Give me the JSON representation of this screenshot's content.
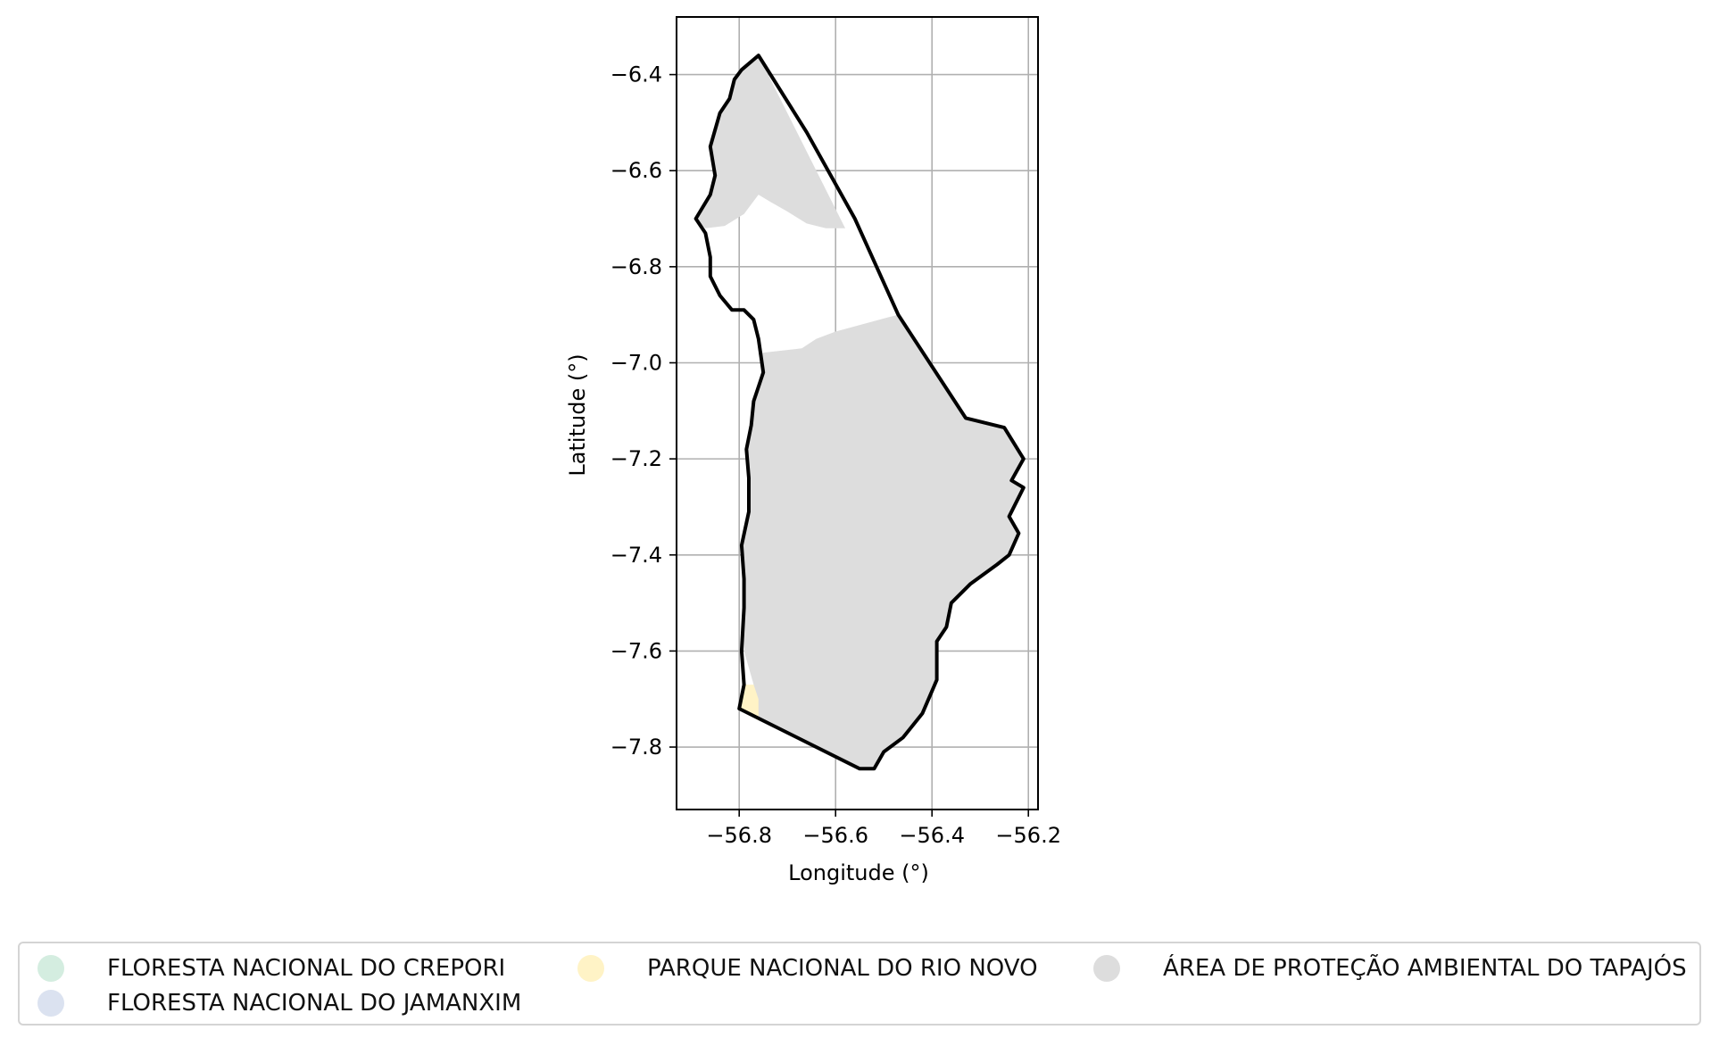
{
  "map": {
    "xlabel": "Longitude (°)",
    "ylabel": "Latitude (°)",
    "xlim": [
      -56.93,
      -56.18
    ],
    "ylim": [
      -7.93,
      -6.28
    ],
    "x_ticks": [
      {
        "value": -56.8,
        "label": "−56.8"
      },
      {
        "value": -56.6,
        "label": "−56.6"
      },
      {
        "value": -56.4,
        "label": "−56.4"
      },
      {
        "value": -56.2,
        "label": "−56.2"
      }
    ],
    "y_ticks": [
      {
        "value": -6.4,
        "label": "−6.4"
      },
      {
        "value": -6.6,
        "label": "−6.6"
      },
      {
        "value": -6.8,
        "label": "−6.8"
      },
      {
        "value": -7.0,
        "label": "−7.0"
      },
      {
        "value": -7.2,
        "label": "−7.2"
      },
      {
        "value": -7.4,
        "label": "−7.4"
      },
      {
        "value": -7.6,
        "label": "−7.6"
      },
      {
        "value": -7.8,
        "label": "−7.8"
      }
    ],
    "grid": true,
    "boundary_color": "#000000",
    "boundary": [
      [
        -56.76,
        -6.36
      ],
      [
        -56.66,
        -6.52
      ],
      [
        -56.56,
        -6.7
      ],
      [
        -56.47,
        -6.9
      ],
      [
        -56.33,
        -7.115
      ],
      [
        -56.25,
        -7.135
      ],
      [
        -56.21,
        -7.2
      ],
      [
        -56.235,
        -7.245
      ],
      [
        -56.21,
        -7.26
      ],
      [
        -56.24,
        -7.32
      ],
      [
        -56.22,
        -7.355
      ],
      [
        -56.24,
        -7.4
      ],
      [
        -56.265,
        -7.42
      ],
      [
        -56.32,
        -7.46
      ],
      [
        -56.36,
        -7.5
      ],
      [
        -56.37,
        -7.55
      ],
      [
        -56.39,
        -7.58
      ],
      [
        -56.39,
        -7.66
      ],
      [
        -56.42,
        -7.73
      ],
      [
        -56.46,
        -7.78
      ],
      [
        -56.5,
        -7.81
      ],
      [
        -56.52,
        -7.845
      ],
      [
        -56.55,
        -7.845
      ],
      [
        -56.8,
        -7.72
      ],
      [
        -56.79,
        -7.67
      ],
      [
        -56.795,
        -7.6
      ],
      [
        -56.79,
        -7.51
      ],
      [
        -56.79,
        -7.45
      ],
      [
        -56.795,
        -7.38
      ],
      [
        -56.78,
        -7.31
      ],
      [
        -56.78,
        -7.24
      ],
      [
        -56.785,
        -7.18
      ],
      [
        -56.775,
        -7.13
      ],
      [
        -56.77,
        -7.08
      ],
      [
        -56.75,
        -7.02
      ],
      [
        -56.76,
        -6.95
      ],
      [
        -56.77,
        -6.91
      ],
      [
        -56.79,
        -6.89
      ],
      [
        -56.815,
        -6.89
      ],
      [
        -56.84,
        -6.86
      ],
      [
        -56.86,
        -6.82
      ],
      [
        -56.86,
        -6.78
      ],
      [
        -56.87,
        -6.73
      ],
      [
        -56.89,
        -6.7
      ],
      [
        -56.86,
        -6.65
      ],
      [
        -56.85,
        -6.61
      ],
      [
        -56.86,
        -6.55
      ],
      [
        -56.84,
        -6.48
      ],
      [
        -56.82,
        -6.45
      ],
      [
        -56.81,
        -6.41
      ],
      [
        -56.795,
        -6.39
      ]
    ],
    "areas": [
      {
        "name": "ÁREA DE PROTEÇÃO AMBIENTAL DO TAPAJÓS",
        "color": "#dddddd",
        "polygons": [
          [
            [
              -56.76,
              -6.36
            ],
            [
              -56.58,
              -6.72
            ],
            [
              -56.62,
              -6.72
            ],
            [
              -56.66,
              -6.71
            ],
            [
              -56.7,
              -6.685
            ],
            [
              -56.735,
              -6.665
            ],
            [
              -56.76,
              -6.65
            ],
            [
              -56.79,
              -6.69
            ],
            [
              -56.83,
              -6.715
            ],
            [
              -56.87,
              -6.72
            ],
            [
              -56.89,
              -6.7
            ],
            [
              -56.86,
              -6.65
            ],
            [
              -56.85,
              -6.61
            ],
            [
              -56.86,
              -6.55
            ],
            [
              -56.84,
              -6.48
            ],
            [
              -56.82,
              -6.45
            ],
            [
              -56.81,
              -6.41
            ],
            [
              -56.795,
              -6.39
            ]
          ],
          [
            [
              -56.49,
              -6.905
            ],
            [
              -56.47,
              -6.9
            ],
            [
              -56.33,
              -7.115
            ],
            [
              -56.25,
              -7.135
            ],
            [
              -56.21,
              -7.2
            ],
            [
              -56.235,
              -7.245
            ],
            [
              -56.21,
              -7.26
            ],
            [
              -56.24,
              -7.32
            ],
            [
              -56.22,
              -7.355
            ],
            [
              -56.24,
              -7.4
            ],
            [
              -56.265,
              -7.42
            ],
            [
              -56.32,
              -7.46
            ],
            [
              -56.36,
              -7.5
            ],
            [
              -56.37,
              -7.55
            ],
            [
              -56.39,
              -7.58
            ],
            [
              -56.39,
              -7.66
            ],
            [
              -56.42,
              -7.73
            ],
            [
              -56.46,
              -7.78
            ],
            [
              -56.5,
              -7.81
            ],
            [
              -56.52,
              -7.845
            ],
            [
              -56.55,
              -7.845
            ],
            [
              -56.76,
              -7.745
            ],
            [
              -56.77,
              -7.67
            ],
            [
              -56.79,
              -7.6
            ],
            [
              -56.79,
              -7.51
            ],
            [
              -56.79,
              -7.45
            ],
            [
              -56.795,
              -7.38
            ],
            [
              -56.78,
              -7.31
            ],
            [
              -56.78,
              -7.24
            ],
            [
              -56.785,
              -7.18
            ],
            [
              -56.775,
              -7.13
            ],
            [
              -56.77,
              -7.08
            ],
            [
              -56.75,
              -7.02
            ],
            [
              -56.76,
              -6.98
            ],
            [
              -56.67,
              -6.97
            ],
            [
              -56.64,
              -6.95
            ],
            [
              -56.6,
              -6.935
            ]
          ]
        ]
      },
      {
        "name": "PARQUE NACIONAL DO RIO NOVO",
        "color": "#fff3c6",
        "polygons": [
          [
            [
              -56.8,
              -7.72
            ],
            [
              -56.76,
              -7.745
            ],
            [
              -56.76,
              -7.7
            ],
            [
              -56.77,
              -7.67
            ],
            [
              -56.79,
              -7.67
            ]
          ]
        ]
      }
    ]
  },
  "legend": {
    "items": [
      {
        "label": "FLORESTA NACIONAL DO CREPORI",
        "color": "#d4ede0"
      },
      {
        "label": "FLORESTA NACIONAL DO JAMANXIM",
        "color": "#dbe2f0"
      },
      {
        "label": "PARQUE NACIONAL DO RIO NOVO",
        "color": "#fff3c6"
      },
      {
        "label": "ÁREA DE PROTEÇÃO AMBIENTAL DO TAPAJÓS",
        "color": "#dddddd"
      }
    ]
  }
}
